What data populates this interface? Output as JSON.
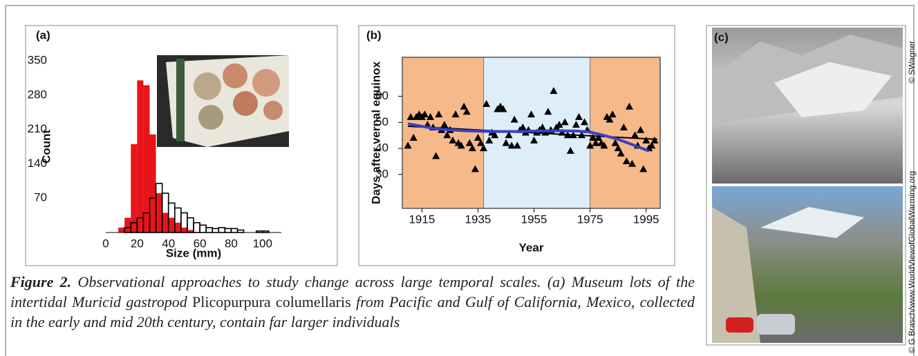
{
  "chart_data": [
    {
      "type": "histogram",
      "panel_label": "(a)",
      "xlabel": "Size (mm)",
      "ylabel": "Count",
      "bins": [
        8,
        12,
        16,
        20,
        24,
        28,
        32,
        36,
        40,
        44,
        48,
        52,
        56,
        60,
        64,
        68,
        72,
        76,
        80,
        84,
        88,
        92,
        96,
        100,
        104
      ],
      "series": [
        {
          "color": "#e8141a",
          "filled": true,
          "values": [
            10,
            30,
            180,
            310,
            300,
            200,
            80,
            40,
            30,
            20,
            10,
            5,
            0,
            0,
            0,
            0,
            0,
            0,
            0,
            0,
            0,
            0,
            0,
            0
          ]
        },
        {
          "color": "#000000",
          "filled": false,
          "values": [
            0,
            10,
            20,
            30,
            40,
            70,
            100,
            80,
            60,
            50,
            40,
            30,
            20,
            15,
            10,
            8,
            10,
            8,
            8,
            5,
            0,
            0,
            3,
            3
          ]
        }
      ],
      "xlim": [
        0,
        112
      ],
      "xticks": [
        0,
        20,
        40,
        60,
        80,
        100
      ],
      "ylim": [
        0,
        350
      ],
      "yticks": [
        70,
        140,
        210,
        280,
        350
      ]
    },
    {
      "type": "scatter",
      "panel_label": "(b)",
      "xlabel": "Year",
      "ylabel": "Days after vernal equinox",
      "x": [
        1910,
        1911,
        1912,
        1913,
        1914,
        1915,
        1916,
        1917,
        1918,
        1919,
        1920,
        1921,
        1922,
        1923,
        1924,
        1925,
        1926,
        1927,
        1928,
        1929,
        1930,
        1931,
        1932,
        1933,
        1934,
        1935,
        1936,
        1937,
        1938,
        1939,
        1940,
        1941,
        1942,
        1943,
        1944,
        1945,
        1946,
        1947,
        1948,
        1949,
        1950,
        1951,
        1952,
        1953,
        1954,
        1955,
        1956,
        1957,
        1958,
        1959,
        1960,
        1961,
        1962,
        1963,
        1964,
        1965,
        1966,
        1967,
        1968,
        1969,
        1970,
        1971,
        1972,
        1973,
        1974,
        1975,
        1976,
        1977,
        1978,
        1979,
        1980,
        1981,
        1982,
        1983,
        1984,
        1985,
        1986,
        1987,
        1988,
        1989,
        1990,
        1991,
        1992,
        1993,
        1994,
        1995,
        1996,
        1997,
        1998
      ],
      "values": [
        41,
        52,
        44,
        52,
        53,
        52,
        53,
        49,
        52,
        48,
        37,
        53,
        47,
        49,
        45,
        47,
        43,
        53,
        42,
        41,
        56,
        54,
        42,
        40,
        32,
        44,
        42,
        40,
        57,
        43,
        46,
        45,
        55,
        56,
        55,
        42,
        45,
        41,
        51,
        41,
        47,
        48,
        46,
        47,
        53,
        43,
        46,
        47,
        48,
        46,
        54,
        47,
        62,
        48,
        49,
        46,
        50,
        45,
        39,
        45,
        49,
        52,
        45,
        50,
        47,
        41,
        44,
        42,
        44,
        42,
        41,
        52,
        51,
        53,
        42,
        40,
        38,
        48,
        35,
        56,
        34,
        45,
        41,
        47,
        32,
        43,
        40,
        41,
        43
      ],
      "color": "#000000",
      "marker": "triangle",
      "lines": [
        {
          "color": "#000000",
          "x": [
            1910,
            1999
          ],
          "values": [
            48.5,
            43.5
          ]
        },
        {
          "color": "#3b3fc4",
          "x": [
            1910,
            1920,
            1930,
            1940,
            1950,
            1960,
            1970,
            1975,
            1980,
            1985,
            1990,
            1996
          ],
          "values": [
            49.5,
            47.5,
            46.8,
            46.5,
            46.5,
            46.8,
            46.7,
            46.3,
            45,
            43.5,
            41.5,
            39
          ]
        }
      ],
      "spans": [
        {
          "start": 1908,
          "end": 1937,
          "color": "#f6b989"
        },
        {
          "start": 1937,
          "end": 1975,
          "color": "#ddeef8"
        },
        {
          "start": 1975,
          "end": 2000,
          "color": "#f6b989"
        }
      ],
      "xlim": [
        1908,
        2000
      ],
      "xticks": [
        1915,
        1935,
        1955,
        1975,
        1995
      ],
      "ylim": [
        17,
        75
      ],
      "yticks": [
        30,
        40,
        50,
        60
      ]
    }
  ],
  "figure": {
    "panel_c": {
      "label": "(c)",
      "credits": [
        "© SWagner",
        "© G Brasch/www.WorldViewofGlobalWarming.org"
      ]
    },
    "caption": {
      "label": "Figure 2.",
      "text1": " Observational approaches to study change across large temporal scales. (a) Museum lots of the intertidal Muricid gastropod ",
      "species": "Plicopurpura columellaris",
      "text2": " from Pacific and Gulf of California, Mexico, collected in the early and mid 20th century, contain far larger individuals"
    }
  }
}
